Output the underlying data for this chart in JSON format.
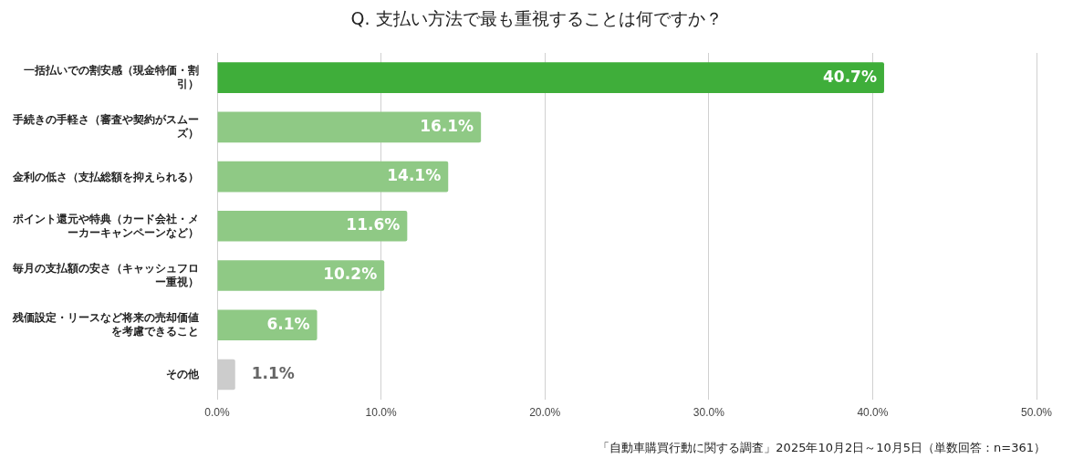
{
  "chart_data": {
    "type": "bar",
    "orientation": "horizontal",
    "title": "Q. 支払い方法で最も重視することは何ですか？",
    "categories": [
      "一括払いでの割安感（現金特価・割引）",
      "手続きの手軽さ（審査や契約がスムーズ）",
      "金利の低さ（支払総額を抑えられる）",
      "ポイント還元や特典（カード会社・メーカーキャンペーンなど）",
      "毎月の支払額の安さ（キャッシュフロー重視）",
      "残価設定・リースなど将来の売却価値を考慮できること",
      "その他"
    ],
    "values": [
      40.7,
      16.1,
      14.1,
      11.6,
      10.2,
      6.1,
      1.1
    ],
    "colors": [
      "#3fae3a",
      "#8fc985",
      "#8fc985",
      "#8fc985",
      "#8fc985",
      "#8fc985",
      "#cccccc"
    ],
    "value_labels": [
      "40.7%",
      "16.1%",
      "14.1%",
      "11.6%",
      "10.2%",
      "6.1%",
      "1.1%"
    ],
    "xlim": [
      0,
      50
    ],
    "xticks": [
      {
        "value": 0,
        "label": "0.0%"
      },
      {
        "value": 10,
        "label": "10.0%"
      },
      {
        "value": 20,
        "label": "20.0%"
      },
      {
        "value": 30,
        "label": "30.0%"
      },
      {
        "value": 40,
        "label": "40.0%"
      },
      {
        "value": 50,
        "label": "50.0%"
      }
    ],
    "grid": "x",
    "legend": false,
    "annotations": [
      "「自動車購買行動に関する調査」2025年10月2日～10月5日（単数回答：n=361）"
    ]
  }
}
